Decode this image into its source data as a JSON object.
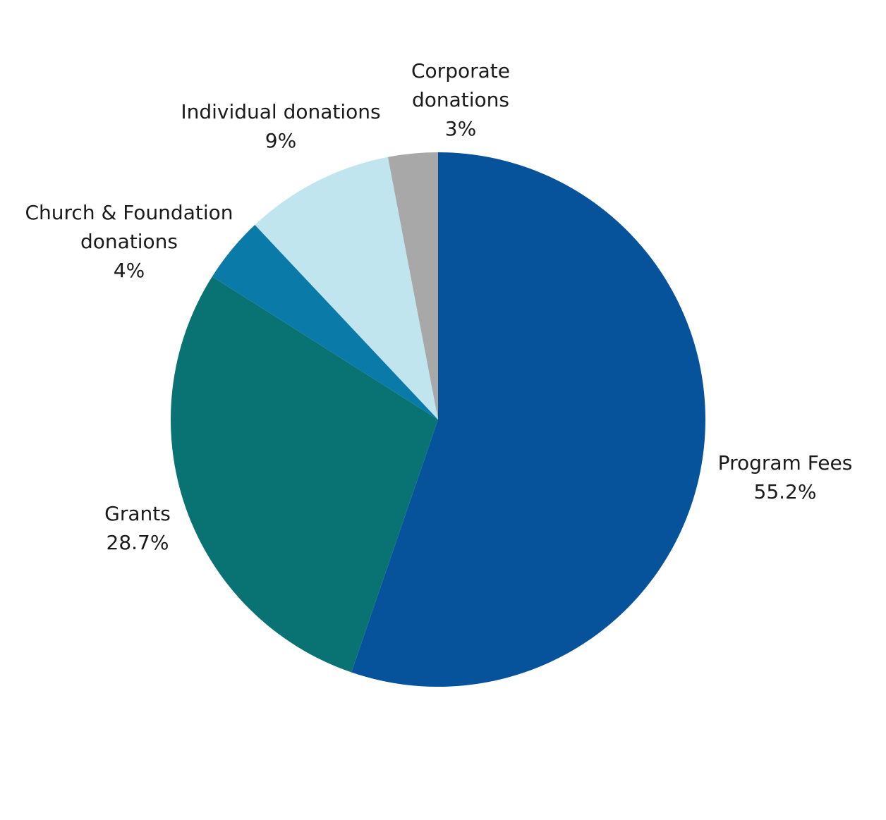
{
  "chart_data": {
    "type": "pie",
    "title": "",
    "start_angle_deg": 0,
    "direction": "clockwise",
    "slices": [
      {
        "label_lines": [
          "Program Fees"
        ],
        "value_label": "55.2%",
        "value": 55.2,
        "color": "#06539c"
      },
      {
        "label_lines": [
          "Grants"
        ],
        "value_label": "28.7%",
        "value": 28.7,
        "color": "#087372"
      },
      {
        "label_lines": [
          "Church & Foundation",
          "donations"
        ],
        "value_label": "4%",
        "value": 4,
        "color": "#0a7aa8"
      },
      {
        "label_lines": [
          "Individual donations"
        ],
        "value_label": "9%",
        "value": 9,
        "color": "#c1e5ee"
      },
      {
        "label_lines": [
          "Corporate",
          "donations"
        ],
        "value_label": "3%",
        "value": 3,
        "color": "#a8a8a8"
      }
    ]
  }
}
